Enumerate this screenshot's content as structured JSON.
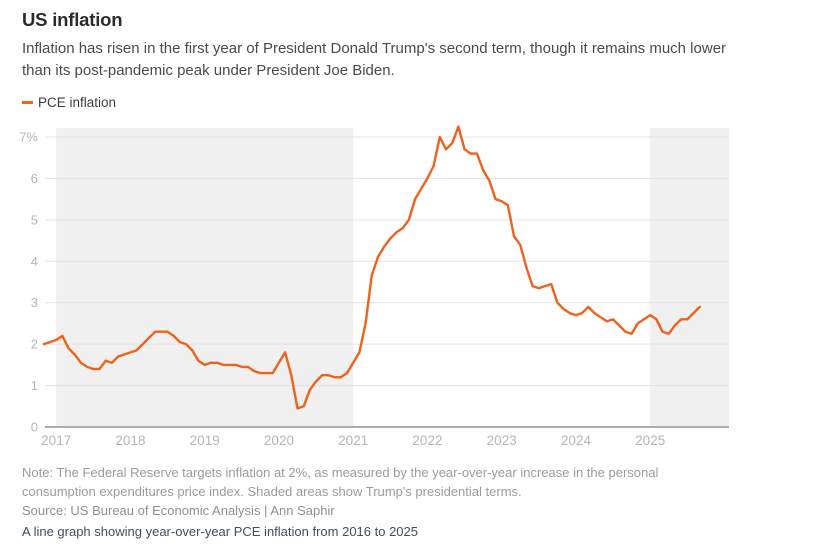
{
  "header": {
    "title": "US inflation",
    "subtitle": "Inflation has risen in the first year of President Donald Trump's second term, though it remains much lower than its post-pandemic peak under President Joe Biden."
  },
  "legend": {
    "label": "PCE inflation"
  },
  "colors": {
    "line": "#ee621c",
    "shading": "#f0f0f0",
    "grid": "#e3e3e3",
    "axis": "#adadad",
    "axis_label": "#b5b5b5"
  },
  "chart_data": {
    "type": "line",
    "title": "US inflation",
    "unit": "percent, year-over-year",
    "ylim": [
      0,
      7.5
    ],
    "y_ticks": [
      "0",
      "1",
      "2",
      "3",
      "4",
      "5",
      "6",
      "7%"
    ],
    "x_ticks": [
      "2017",
      "2018",
      "2019",
      "2020",
      "2021",
      "2022",
      "2023",
      "2024",
      "2025"
    ],
    "grid": true,
    "legend_position": "top-left",
    "shaded_regions": [
      {
        "label": "Trump first term",
        "from": "2017-01",
        "to": "2021-01"
      },
      {
        "label": "Trump second term",
        "from": "2025-01",
        "to": null
      }
    ],
    "series": [
      {
        "name": "PCE inflation",
        "start": "2016-11",
        "frequency": "monthly",
        "values": [
          2.0,
          2.05,
          2.1,
          2.2,
          1.9,
          1.75,
          1.55,
          1.45,
          1.4,
          1.4,
          1.6,
          1.55,
          1.7,
          1.75,
          1.8,
          1.85,
          2.0,
          2.15,
          2.3,
          2.3,
          2.3,
          2.2,
          2.05,
          2.0,
          1.85,
          1.6,
          1.5,
          1.55,
          1.55,
          1.5,
          1.5,
          1.5,
          1.45,
          1.45,
          1.35,
          1.3,
          1.3,
          1.3,
          1.55,
          1.8,
          1.25,
          0.45,
          0.5,
          0.9,
          1.1,
          1.25,
          1.25,
          1.2,
          1.2,
          1.3,
          1.55,
          1.8,
          2.5,
          3.65,
          4.1,
          4.35,
          4.55,
          4.7,
          4.8,
          5.0,
          5.5,
          5.75,
          6.0,
          6.3,
          7.0,
          6.7,
          6.85,
          7.25,
          6.7,
          6.6,
          6.6,
          6.2,
          5.95,
          5.5,
          5.45,
          5.35,
          4.6,
          4.4,
          3.85,
          3.4,
          3.35,
          3.4,
          3.45,
          3.0,
          2.85,
          2.75,
          2.7,
          2.75,
          2.9,
          2.75,
          2.65,
          2.55,
          2.6,
          2.45,
          2.3,
          2.25,
          2.5,
          2.6,
          2.7,
          2.6,
          2.3,
          2.25,
          2.45,
          2.6,
          2.6,
          2.75,
          2.9
        ]
      }
    ]
  },
  "footer": {
    "note": "Note: The Federal Reserve targets inflation at 2%, as measured by the year-over-year increase in the personal consumption expenditures price index. Shaded areas show Trump's presidential terms.",
    "source": "Source: US Bureau of Economic Analysis | Ann Saphir",
    "alt_text": "A line graph showing year-over-year PCE inflation from 2016 to 2025"
  }
}
